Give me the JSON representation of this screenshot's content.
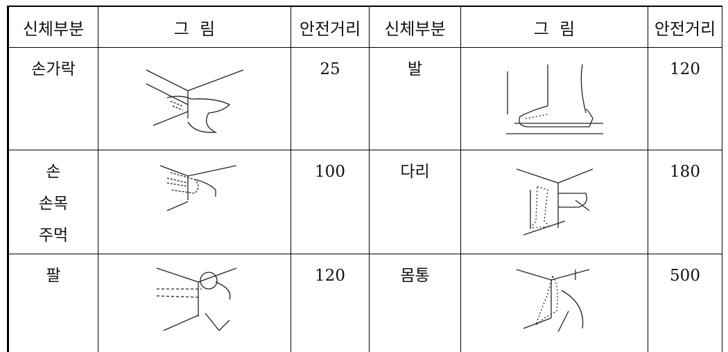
{
  "table": {
    "header": [
      "신체부분",
      "그  림",
      "안전거리",
      "신체부분",
      "그  림",
      "안전거리"
    ],
    "rows": [
      {
        "left_part": [
          "손가락"
        ],
        "left_distance": 25,
        "right_part": [
          "발"
        ],
        "right_distance": 120
      },
      {
        "left_part": [
          "손",
          "손목",
          "주먹"
        ],
        "left_distance": 100,
        "right_part": [
          "다리"
        ],
        "right_distance": 180
      },
      {
        "left_part": [
          "팔"
        ],
        "left_distance": 120,
        "right_part": [
          "몸통"
        ],
        "right_distance": 500
      }
    ]
  }
}
